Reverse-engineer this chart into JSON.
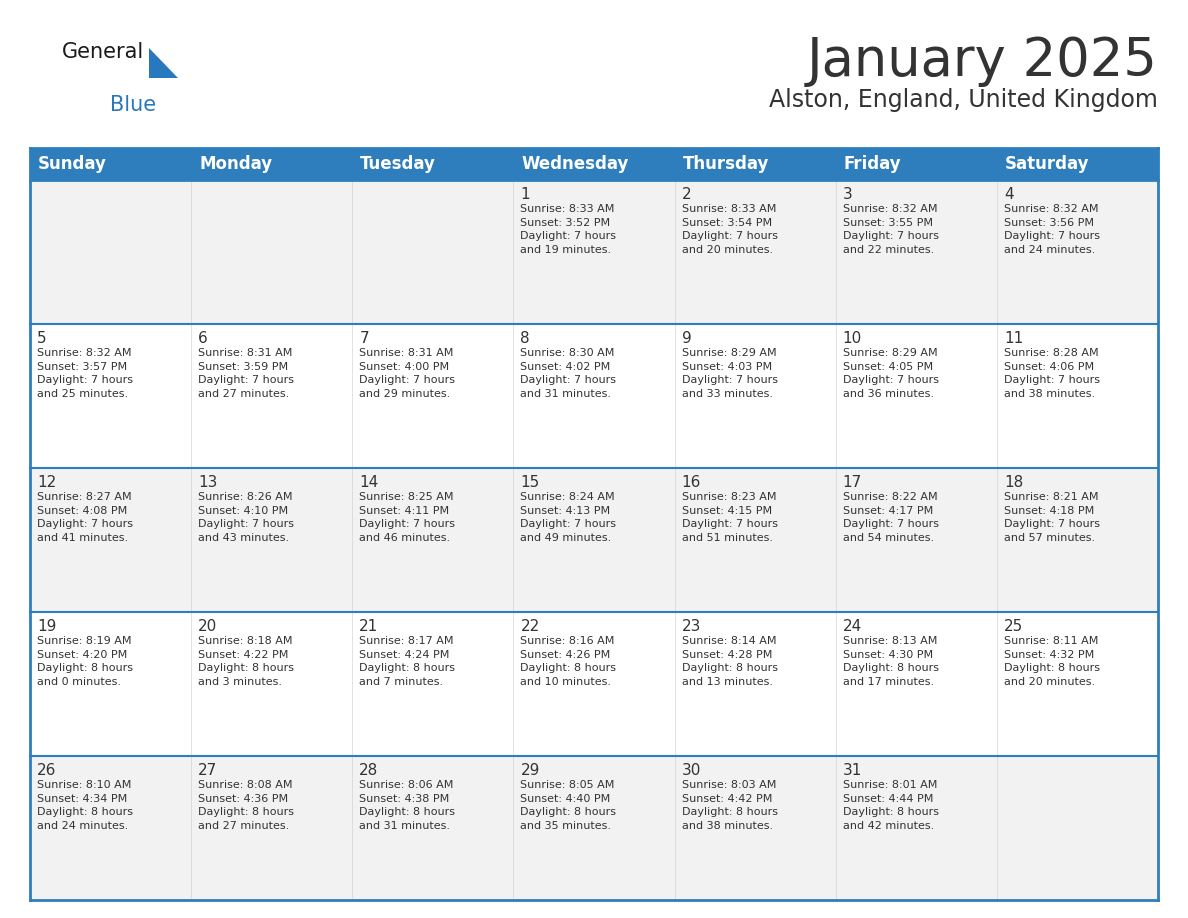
{
  "title": "January 2025",
  "subtitle": "Alston, England, United Kingdom",
  "header_color": "#2e7ebe",
  "header_text_color": "#ffffff",
  "border_color": "#2e7ebe",
  "text_color": "#333333",
  "cell_bg_even": "#f2f2f2",
  "cell_bg_odd": "#ffffff",
  "days_of_week": [
    "Sunday",
    "Monday",
    "Tuesday",
    "Wednesday",
    "Thursday",
    "Friday",
    "Saturday"
  ],
  "weeks": [
    [
      {
        "day": null,
        "info": null
      },
      {
        "day": null,
        "info": null
      },
      {
        "day": null,
        "info": null
      },
      {
        "day": "1",
        "info": "Sunrise: 8:33 AM\nSunset: 3:52 PM\nDaylight: 7 hours\nand 19 minutes."
      },
      {
        "day": "2",
        "info": "Sunrise: 8:33 AM\nSunset: 3:54 PM\nDaylight: 7 hours\nand 20 minutes."
      },
      {
        "day": "3",
        "info": "Sunrise: 8:32 AM\nSunset: 3:55 PM\nDaylight: 7 hours\nand 22 minutes."
      },
      {
        "day": "4",
        "info": "Sunrise: 8:32 AM\nSunset: 3:56 PM\nDaylight: 7 hours\nand 24 minutes."
      }
    ],
    [
      {
        "day": "5",
        "info": "Sunrise: 8:32 AM\nSunset: 3:57 PM\nDaylight: 7 hours\nand 25 minutes."
      },
      {
        "day": "6",
        "info": "Sunrise: 8:31 AM\nSunset: 3:59 PM\nDaylight: 7 hours\nand 27 minutes."
      },
      {
        "day": "7",
        "info": "Sunrise: 8:31 AM\nSunset: 4:00 PM\nDaylight: 7 hours\nand 29 minutes."
      },
      {
        "day": "8",
        "info": "Sunrise: 8:30 AM\nSunset: 4:02 PM\nDaylight: 7 hours\nand 31 minutes."
      },
      {
        "day": "9",
        "info": "Sunrise: 8:29 AM\nSunset: 4:03 PM\nDaylight: 7 hours\nand 33 minutes."
      },
      {
        "day": "10",
        "info": "Sunrise: 8:29 AM\nSunset: 4:05 PM\nDaylight: 7 hours\nand 36 minutes."
      },
      {
        "day": "11",
        "info": "Sunrise: 8:28 AM\nSunset: 4:06 PM\nDaylight: 7 hours\nand 38 minutes."
      }
    ],
    [
      {
        "day": "12",
        "info": "Sunrise: 8:27 AM\nSunset: 4:08 PM\nDaylight: 7 hours\nand 41 minutes."
      },
      {
        "day": "13",
        "info": "Sunrise: 8:26 AM\nSunset: 4:10 PM\nDaylight: 7 hours\nand 43 minutes."
      },
      {
        "day": "14",
        "info": "Sunrise: 8:25 AM\nSunset: 4:11 PM\nDaylight: 7 hours\nand 46 minutes."
      },
      {
        "day": "15",
        "info": "Sunrise: 8:24 AM\nSunset: 4:13 PM\nDaylight: 7 hours\nand 49 minutes."
      },
      {
        "day": "16",
        "info": "Sunrise: 8:23 AM\nSunset: 4:15 PM\nDaylight: 7 hours\nand 51 minutes."
      },
      {
        "day": "17",
        "info": "Sunrise: 8:22 AM\nSunset: 4:17 PM\nDaylight: 7 hours\nand 54 minutes."
      },
      {
        "day": "18",
        "info": "Sunrise: 8:21 AM\nSunset: 4:18 PM\nDaylight: 7 hours\nand 57 minutes."
      }
    ],
    [
      {
        "day": "19",
        "info": "Sunrise: 8:19 AM\nSunset: 4:20 PM\nDaylight: 8 hours\nand 0 minutes."
      },
      {
        "day": "20",
        "info": "Sunrise: 8:18 AM\nSunset: 4:22 PM\nDaylight: 8 hours\nand 3 minutes."
      },
      {
        "day": "21",
        "info": "Sunrise: 8:17 AM\nSunset: 4:24 PM\nDaylight: 8 hours\nand 7 minutes."
      },
      {
        "day": "22",
        "info": "Sunrise: 8:16 AM\nSunset: 4:26 PM\nDaylight: 8 hours\nand 10 minutes."
      },
      {
        "day": "23",
        "info": "Sunrise: 8:14 AM\nSunset: 4:28 PM\nDaylight: 8 hours\nand 13 minutes."
      },
      {
        "day": "24",
        "info": "Sunrise: 8:13 AM\nSunset: 4:30 PM\nDaylight: 8 hours\nand 17 minutes."
      },
      {
        "day": "25",
        "info": "Sunrise: 8:11 AM\nSunset: 4:32 PM\nDaylight: 8 hours\nand 20 minutes."
      }
    ],
    [
      {
        "day": "26",
        "info": "Sunrise: 8:10 AM\nSunset: 4:34 PM\nDaylight: 8 hours\nand 24 minutes."
      },
      {
        "day": "27",
        "info": "Sunrise: 8:08 AM\nSunset: 4:36 PM\nDaylight: 8 hours\nand 27 minutes."
      },
      {
        "day": "28",
        "info": "Sunrise: 8:06 AM\nSunset: 4:38 PM\nDaylight: 8 hours\nand 31 minutes."
      },
      {
        "day": "29",
        "info": "Sunrise: 8:05 AM\nSunset: 4:40 PM\nDaylight: 8 hours\nand 35 minutes."
      },
      {
        "day": "30",
        "info": "Sunrise: 8:03 AM\nSunset: 4:42 PM\nDaylight: 8 hours\nand 38 minutes."
      },
      {
        "day": "31",
        "info": "Sunrise: 8:01 AM\nSunset: 4:44 PM\nDaylight: 8 hours\nand 42 minutes."
      },
      {
        "day": null,
        "info": null
      }
    ]
  ],
  "logo_general_color": "#1a1a1a",
  "logo_blue_color": "#2878be",
  "title_fontsize": 38,
  "subtitle_fontsize": 17,
  "header_fontsize": 12,
  "day_number_fontsize": 11,
  "cell_text_fontsize": 8
}
